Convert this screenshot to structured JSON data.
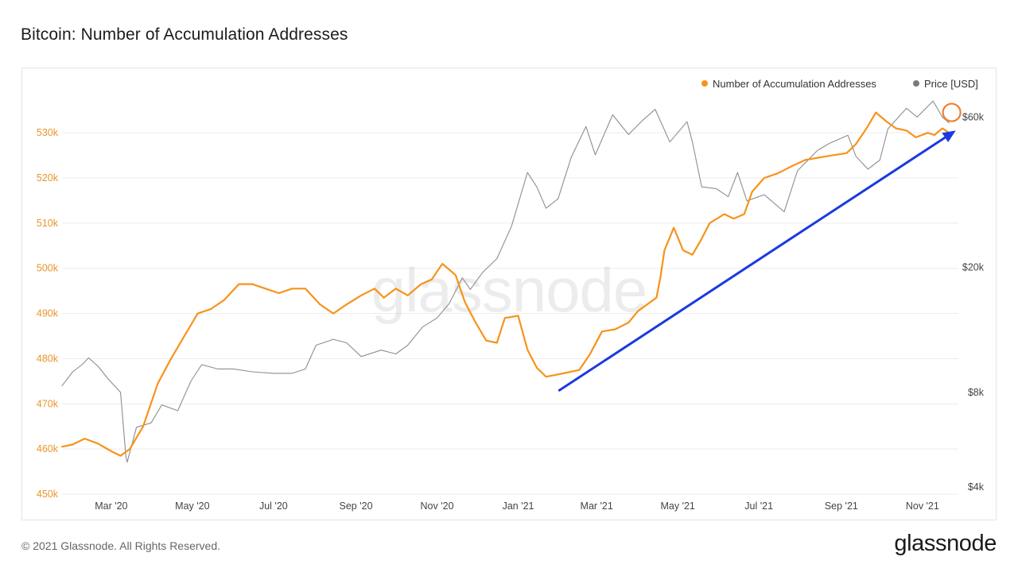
{
  "page": {
    "title": "Bitcoin: Number of Accumulation Addresses",
    "footer": "© 2021 Glassnode. All Rights Reserved.",
    "brand": "glassnode",
    "watermark": "glassnode"
  },
  "chart_data": {
    "type": "line",
    "x_ticks": [
      "Mar '20",
      "May '20",
      "Jul '20",
      "Sep '20",
      "Nov '20",
      "Jan '21",
      "Mar '21",
      "May '21",
      "Jul '21",
      "Sep '21",
      "Nov '21"
    ],
    "x_range": [
      "2020-01-24",
      "2021-11-28"
    ],
    "y_left": {
      "ticks": [
        450000,
        460000,
        470000,
        480000,
        490000,
        500000,
        510000,
        520000,
        530000
      ],
      "tick_labels": [
        "450k",
        "460k",
        "470k",
        "480k",
        "490k",
        "500k",
        "510k",
        "520k",
        "530k"
      ],
      "range": [
        450000,
        539000
      ],
      "color": "#f7931a"
    },
    "y_right": {
      "scale": "log",
      "ticks": [
        4000,
        8000,
        20000,
        60000
      ],
      "tick_labels": [
        "$4k",
        "$8k",
        "$20k",
        "$60k"
      ],
      "range": [
        3800,
        72000
      ]
    },
    "grid": true,
    "legend_position": "top-right",
    "series": [
      {
        "name": "Number of Accumulation Addresses",
        "axis": "left",
        "color": "#f7931a",
        "points": [
          [
            "2020-01-24",
            460500
          ],
          [
            "2020-02-01",
            461000
          ],
          [
            "2020-02-10",
            462300
          ],
          [
            "2020-02-20",
            461200
          ],
          [
            "2020-03-01",
            459500
          ],
          [
            "2020-03-08",
            458500
          ],
          [
            "2020-03-15",
            460000
          ],
          [
            "2020-03-25",
            465000
          ],
          [
            "2020-04-05",
            474500
          ],
          [
            "2020-04-15",
            480000
          ],
          [
            "2020-04-25",
            485000
          ],
          [
            "2020-05-05",
            490000
          ],
          [
            "2020-05-15",
            491000
          ],
          [
            "2020-05-25",
            493000
          ],
          [
            "2020-06-05",
            496500
          ],
          [
            "2020-06-15",
            496500
          ],
          [
            "2020-06-25",
            495500
          ],
          [
            "2020-07-05",
            494500
          ],
          [
            "2020-07-15",
            495500
          ],
          [
            "2020-07-25",
            495500
          ],
          [
            "2020-08-05",
            492000
          ],
          [
            "2020-08-15",
            490000
          ],
          [
            "2020-08-25",
            492000
          ],
          [
            "2020-09-05",
            494000
          ],
          [
            "2020-09-15",
            495500
          ],
          [
            "2020-09-22",
            493500
          ],
          [
            "2020-10-01",
            495500
          ],
          [
            "2020-10-10",
            494000
          ],
          [
            "2020-10-20",
            496500
          ],
          [
            "2020-10-28",
            497500
          ],
          [
            "2020-11-05",
            501000
          ],
          [
            "2020-11-15",
            498500
          ],
          [
            "2020-11-22",
            492500
          ],
          [
            "2020-11-30",
            488000
          ],
          [
            "2020-12-08",
            484000
          ],
          [
            "2020-12-16",
            483500
          ],
          [
            "2020-12-22",
            489000
          ],
          [
            "2021-01-01",
            489500
          ],
          [
            "2021-01-08",
            482000
          ],
          [
            "2021-01-15",
            478000
          ],
          [
            "2021-01-22",
            476000
          ],
          [
            "2021-01-31",
            476500
          ],
          [
            "2021-02-08",
            477000
          ],
          [
            "2021-02-16",
            477500
          ],
          [
            "2021-02-24",
            481000
          ],
          [
            "2021-03-05",
            486000
          ],
          [
            "2021-03-15",
            486500
          ],
          [
            "2021-03-25",
            488000
          ],
          [
            "2021-04-01",
            490500
          ],
          [
            "2021-04-08",
            492000
          ],
          [
            "2021-04-15",
            493500
          ],
          [
            "2021-04-18",
            498000
          ],
          [
            "2021-04-21",
            504000
          ],
          [
            "2021-04-28",
            509000
          ],
          [
            "2021-05-05",
            504000
          ],
          [
            "2021-05-12",
            503000
          ],
          [
            "2021-05-18",
            506000
          ],
          [
            "2021-05-25",
            510000
          ],
          [
            "2021-06-05",
            512000
          ],
          [
            "2021-06-12",
            511000
          ],
          [
            "2021-06-20",
            512000
          ],
          [
            "2021-06-26",
            517000
          ],
          [
            "2021-07-05",
            520000
          ],
          [
            "2021-07-15",
            521000
          ],
          [
            "2021-07-25",
            522500
          ],
          [
            "2021-08-05",
            524000
          ],
          [
            "2021-08-15",
            524500
          ],
          [
            "2021-08-25",
            525000
          ],
          [
            "2021-09-05",
            525500
          ],
          [
            "2021-09-12",
            527500
          ],
          [
            "2021-09-20",
            531000
          ],
          [
            "2021-09-27",
            534500
          ],
          [
            "2021-10-05",
            532500
          ],
          [
            "2021-10-12",
            531000
          ],
          [
            "2021-10-20",
            530500
          ],
          [
            "2021-10-27",
            529000
          ],
          [
            "2021-11-05",
            530000
          ],
          [
            "2021-11-10",
            529500
          ],
          [
            "2021-11-16",
            531000
          ],
          [
            "2021-11-21",
            530000
          ]
        ]
      },
      {
        "name": "Price [USD]",
        "axis": "right",
        "color": "#8e8e8e",
        "points": [
          [
            "2020-01-24",
            8400
          ],
          [
            "2020-02-01",
            9300
          ],
          [
            "2020-02-08",
            9800
          ],
          [
            "2020-02-13",
            10300
          ],
          [
            "2020-02-20",
            9700
          ],
          [
            "2020-02-28",
            8800
          ],
          [
            "2020-03-08",
            8000
          ],
          [
            "2020-03-12",
            5000
          ],
          [
            "2020-03-13",
            4800
          ],
          [
            "2020-03-20",
            6200
          ],
          [
            "2020-03-31",
            6400
          ],
          [
            "2020-04-08",
            7300
          ],
          [
            "2020-04-20",
            7000
          ],
          [
            "2020-04-30",
            8700
          ],
          [
            "2020-05-08",
            9800
          ],
          [
            "2020-05-20",
            9500
          ],
          [
            "2020-06-01",
            9500
          ],
          [
            "2020-06-15",
            9300
          ],
          [
            "2020-07-01",
            9200
          ],
          [
            "2020-07-15",
            9200
          ],
          [
            "2020-07-25",
            9500
          ],
          [
            "2020-08-02",
            11300
          ],
          [
            "2020-08-15",
            11800
          ],
          [
            "2020-08-25",
            11500
          ],
          [
            "2020-09-05",
            10400
          ],
          [
            "2020-09-20",
            10900
          ],
          [
            "2020-10-01",
            10600
          ],
          [
            "2020-10-10",
            11300
          ],
          [
            "2020-10-21",
            12900
          ],
          [
            "2020-11-01",
            13800
          ],
          [
            "2020-11-10",
            15300
          ],
          [
            "2020-11-20",
            18500
          ],
          [
            "2020-11-26",
            17000
          ],
          [
            "2020-12-05",
            19200
          ],
          [
            "2020-12-16",
            21300
          ],
          [
            "2020-12-27",
            27000
          ],
          [
            "2021-01-08",
            40000
          ],
          [
            "2021-01-15",
            36000
          ],
          [
            "2021-01-22",
            30800
          ],
          [
            "2021-01-31",
            33000
          ],
          [
            "2021-02-10",
            44800
          ],
          [
            "2021-02-21",
            56000
          ],
          [
            "2021-02-28",
            45500
          ],
          [
            "2021-03-13",
            61000
          ],
          [
            "2021-03-25",
            52800
          ],
          [
            "2021-04-05",
            58800
          ],
          [
            "2021-04-14",
            63500
          ],
          [
            "2021-04-25",
            50000
          ],
          [
            "2021-05-08",
            58000
          ],
          [
            "2021-05-12",
            50000
          ],
          [
            "2021-05-19",
            36000
          ],
          [
            "2021-05-30",
            35500
          ],
          [
            "2021-06-08",
            33500
          ],
          [
            "2021-06-15",
            40000
          ],
          [
            "2021-06-22",
            32500
          ],
          [
            "2021-07-05",
            34000
          ],
          [
            "2021-07-20",
            30000
          ],
          [
            "2021-07-30",
            40500
          ],
          [
            "2021-08-14",
            47000
          ],
          [
            "2021-08-23",
            49500
          ],
          [
            "2021-09-06",
            52500
          ],
          [
            "2021-09-12",
            45000
          ],
          [
            "2021-09-21",
            41000
          ],
          [
            "2021-09-30",
            43800
          ],
          [
            "2021-10-06",
            55000
          ],
          [
            "2021-10-20",
            64000
          ],
          [
            "2021-10-28",
            60000
          ],
          [
            "2021-11-09",
            67500
          ],
          [
            "2021-11-16",
            60000
          ],
          [
            "2021-11-21",
            57500
          ]
        ]
      }
    ],
    "annotations": [
      {
        "type": "circle",
        "color": "#f07f2e",
        "at": [
          "2021-11-23",
          534500
        ]
      },
      {
        "type": "arrow",
        "color": "#1c39e0",
        "from": [
          "2021-02-01",
          473000
        ],
        "to": [
          "2021-11-26",
          530500
        ]
      }
    ]
  }
}
